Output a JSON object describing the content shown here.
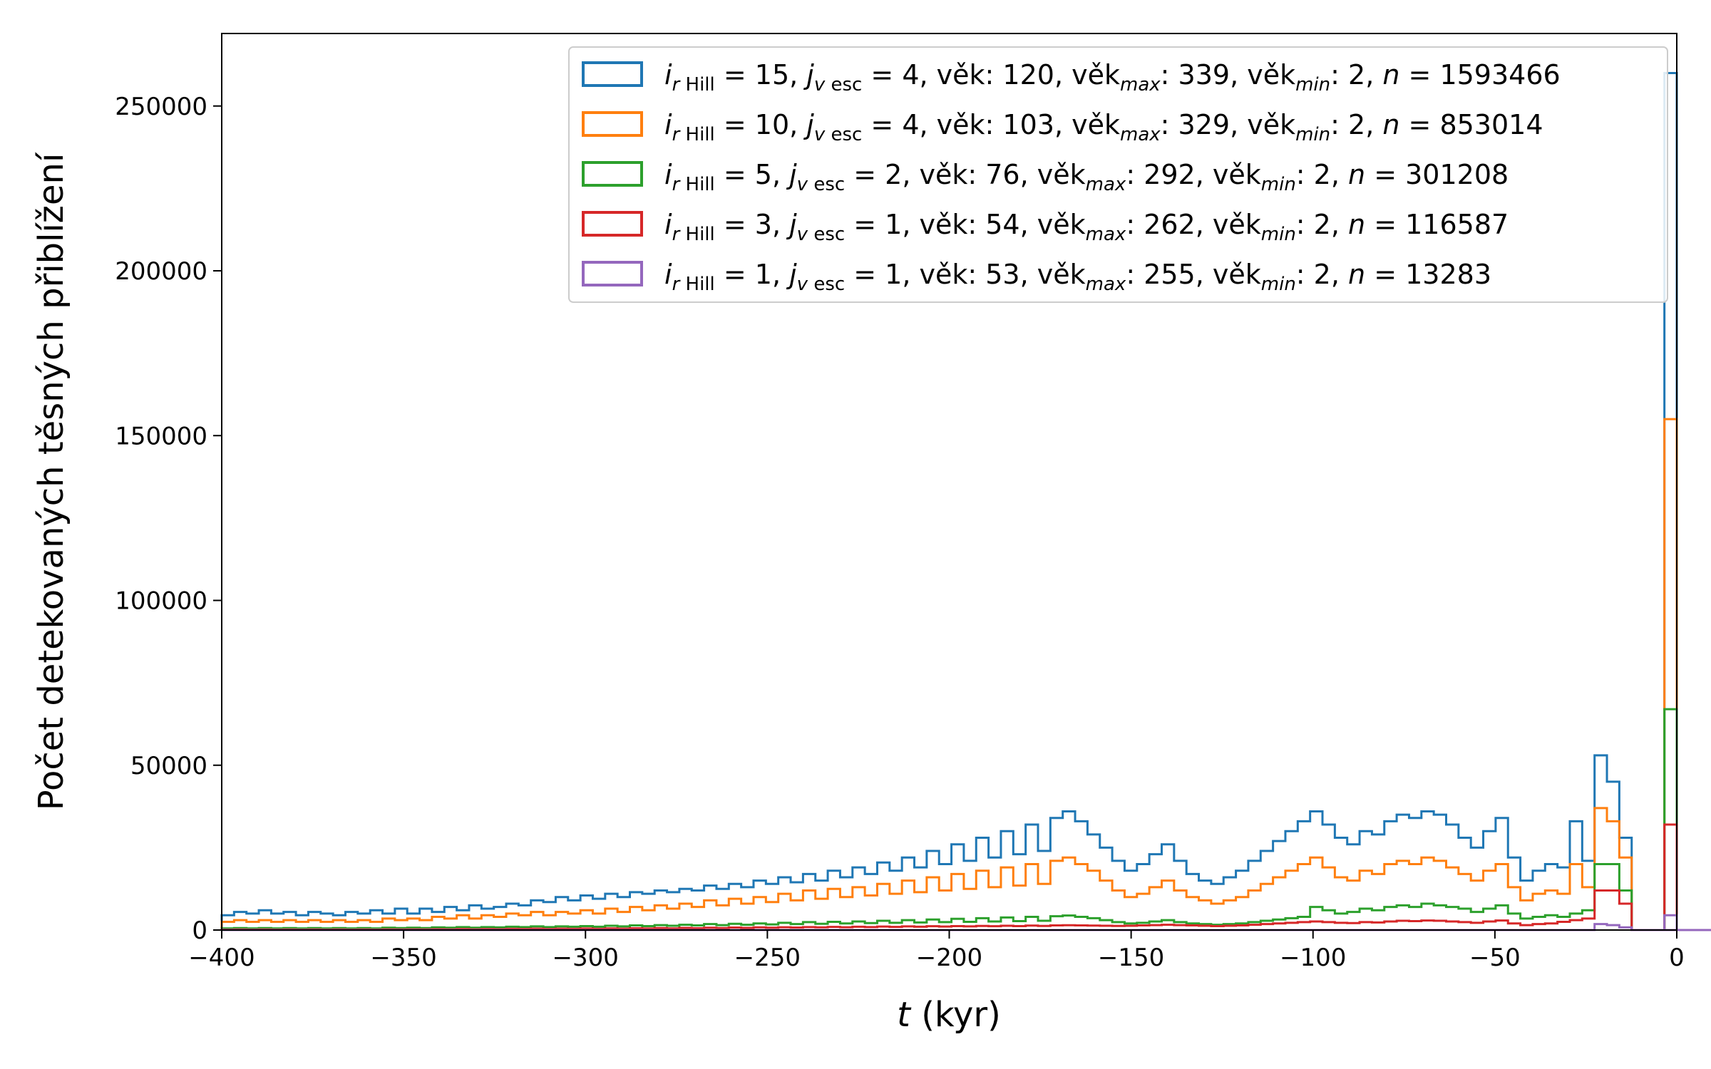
{
  "chart_data": {
    "type": "histogram",
    "xlabel": {
      "var": "t",
      "rest": " (kyr)"
    },
    "ylabel": "Počet detekovaných těsných přiblížení",
    "xlim": [
      -400,
      0
    ],
    "ylim": [
      0,
      272000
    ],
    "x_ticks": [
      -400,
      -350,
      -300,
      -250,
      -200,
      -150,
      -100,
      -50,
      0
    ],
    "x_tick_labels": [
      "−400",
      "−350",
      "−300",
      "−250",
      "−200",
      "−150",
      "−100",
      "−50",
      "0"
    ],
    "y_ticks": [
      0,
      50000,
      100000,
      150000,
      200000,
      250000
    ],
    "y_tick_labels": [
      "0",
      "50000",
      "100000",
      "150000",
      "200000",
      "250000"
    ],
    "grid": false,
    "legend_position": "top-right",
    "bin_start": -400,
    "bin_width": 3.4,
    "x_last_bin": [
      -3.4,
      0
    ],
    "series": [
      {
        "color": "#1f77b4",
        "legend": {
          "rh": "15",
          "jv": "4",
          "age": "120",
          "age_max": "339",
          "age_min": "2",
          "n": "1593466"
        },
        "values": [
          4500,
          5500,
          5000,
          6000,
          5000,
          5500,
          4500,
          5500,
          5000,
          4500,
          5500,
          5000,
          6000,
          5000,
          6500,
          5000,
          6500,
          5500,
          7000,
          6000,
          7500,
          6500,
          7000,
          8000,
          7500,
          9000,
          8500,
          10000,
          9000,
          10500,
          9500,
          11000,
          10000,
          11500,
          11000,
          12000,
          11500,
          12500,
          12000,
          13500,
          12500,
          14000,
          13000,
          15000,
          14000,
          16000,
          14500,
          17000,
          15000,
          18000,
          16000,
          19000,
          17000,
          20500,
          18000,
          22000,
          19000,
          24000,
          20000,
          26000,
          21000,
          28000,
          22000,
          30000,
          23000,
          32000,
          24000,
          34000,
          36000,
          33000,
          29000,
          25000,
          21000,
          18000,
          20000,
          23000,
          26000,
          21000,
          17000,
          15000,
          14000,
          16000,
          18000,
          21000,
          24000,
          27000,
          30000,
          33000,
          36000,
          32000,
          28000,
          26000,
          30000,
          29000,
          33000,
          35000,
          34000,
          36000,
          35000,
          32000,
          28000,
          25000,
          30000,
          34000,
          22000,
          15000,
          18000,
          20000,
          19000,
          33000,
          21000,
          53000,
          45000,
          28000,
          0,
          0,
          0,
          0,
          0,
          0,
          0,
          0,
          0,
          0,
          0,
          0,
          0,
          0,
          0
        ],
        "last_bin": 260000
      },
      {
        "color": "#ff7f0e",
        "legend": {
          "rh": "10",
          "jv": "4",
          "age": "103",
          "age_max": "329",
          "age_min": "2",
          "n": "853014"
        },
        "values": [
          2500,
          3000,
          2500,
          3000,
          2500,
          3000,
          2500,
          3000,
          2500,
          3000,
          2500,
          3000,
          2500,
          3500,
          3000,
          3500,
          3000,
          4000,
          3500,
          4500,
          3500,
          4500,
          4000,
          5000,
          4500,
          5500,
          4500,
          5500,
          5000,
          6000,
          5000,
          6500,
          5500,
          7000,
          6000,
          7500,
          6500,
          8000,
          7000,
          9000,
          7500,
          9500,
          8000,
          10000,
          8500,
          11000,
          9000,
          12000,
          9500,
          12500,
          10000,
          13000,
          10500,
          14000,
          11000,
          15000,
          11500,
          16000,
          12000,
          17000,
          12500,
          18000,
          13000,
          19000,
          13500,
          20000,
          14000,
          21000,
          22000,
          20000,
          18000,
          15000,
          12000,
          10000,
          11000,
          13000,
          15000,
          12000,
          10000,
          9000,
          8000,
          9000,
          10000,
          12000,
          14000,
          16000,
          18000,
          20000,
          22000,
          19000,
          16000,
          15000,
          18000,
          17000,
          20000,
          21000,
          20000,
          22000,
          21000,
          19000,
          17000,
          15000,
          18000,
          20000,
          13000,
          9000,
          11000,
          12000,
          11000,
          20000,
          13000,
          37000,
          33000,
          22000,
          0,
          0,
          0,
          0,
          0,
          0,
          0,
          0,
          0,
          0,
          0,
          0,
          0,
          0,
          0
        ],
        "last_bin": 155000
      },
      {
        "color": "#2ca02c",
        "legend": {
          "rh": " 5",
          "jv": "2",
          "age": " 76",
          "age_max": "292",
          "age_min": "2",
          "n": "301208"
        },
        "values": [
          500,
          600,
          500,
          600,
          500,
          600,
          500,
          600,
          500,
          600,
          500,
          600,
          500,
          700,
          600,
          700,
          600,
          800,
          700,
          900,
          700,
          900,
          800,
          1000,
          900,
          1100,
          900,
          1100,
          1000,
          1200,
          1000,
          1300,
          1100,
          1400,
          1200,
          1500,
          1300,
          1600,
          1400,
          1800,
          1500,
          1900,
          1600,
          2000,
          1700,
          2200,
          1800,
          2400,
          1900,
          2500,
          2000,
          2600,
          2100,
          2800,
          2200,
          3000,
          2300,
          3200,
          2400,
          3400,
          2500,
          3600,
          2600,
          3800,
          2700,
          4000,
          2800,
          4200,
          4400,
          4000,
          3600,
          3000,
          2400,
          2000,
          2200,
          2600,
          3000,
          2400,
          2000,
          1800,
          1600,
          1800,
          2000,
          2400,
          2800,
          3200,
          3600,
          4000,
          7000,
          6000,
          5000,
          5500,
          6500,
          6000,
          7000,
          7500,
          7000,
          8000,
          7500,
          7000,
          6500,
          5500,
          6500,
          7500,
          5000,
          3500,
          4000,
          4500,
          4000,
          5000,
          6000,
          20000,
          20000,
          12000,
          0,
          0,
          0,
          0,
          0,
          0,
          0,
          0,
          0,
          0,
          0,
          0,
          0,
          0,
          0
        ],
        "last_bin": 67000
      },
      {
        "color": "#d62728",
        "legend": {
          "rh": " 3",
          "jv": "1",
          "age": " 54",
          "age_max": "262",
          "age_min": "2",
          "n": "116587"
        },
        "values": [
          100,
          150,
          100,
          150,
          100,
          150,
          100,
          150,
          100,
          150,
          100,
          150,
          100,
          200,
          150,
          200,
          150,
          250,
          200,
          300,
          200,
          300,
          250,
          350,
          300,
          400,
          300,
          400,
          350,
          450,
          350,
          500,
          400,
          550,
          450,
          600,
          500,
          650,
          550,
          700,
          600,
          750,
          650,
          800,
          700,
          850,
          750,
          900,
          800,
          950,
          850,
          1000,
          900,
          1050,
          950,
          1100,
          1000,
          1150,
          1050,
          1200,
          1100,
          1250,
          1150,
          1300,
          1200,
          1350,
          1250,
          1400,
          1450,
          1400,
          1350,
          1300,
          1250,
          1300,
          1400,
          1500,
          1600,
          1500,
          1400,
          1300,
          1200,
          1300,
          1400,
          1600,
          1800,
          2000,
          2200,
          2400,
          2600,
          2400,
          2200,
          2100,
          2400,
          2300,
          2600,
          2800,
          2700,
          2900,
          2800,
          2600,
          2400,
          2200,
          2600,
          2900,
          2000,
          1500,
          1800,
          2000,
          2500,
          3000,
          3500,
          12000,
          12000,
          8000,
          0,
          0,
          0,
          0,
          0,
          0,
          0,
          0,
          0,
          0,
          0,
          0,
          0,
          0,
          0
        ],
        "last_bin": 32000
      },
      {
        "color": "#9467bd",
        "legend": {
          "rh": " 1",
          "jv": "1",
          "age": " 53",
          "age_max": "255",
          "age_min": "2",
          "n": "13283"
        },
        "values": [
          0,
          0,
          0,
          0,
          0,
          0,
          0,
          0,
          0,
          0,
          0,
          0,
          0,
          0,
          0,
          0,
          0,
          0,
          0,
          0,
          0,
          0,
          0,
          0,
          0,
          0,
          0,
          0,
          0,
          0,
          0,
          0,
          0,
          0,
          0,
          0,
          0,
          0,
          0,
          0,
          0,
          0,
          0,
          0,
          0,
          0,
          0,
          0,
          0,
          0,
          0,
          0,
          0,
          0,
          0,
          0,
          0,
          0,
          0,
          0,
          0,
          0,
          0,
          0,
          0,
          0,
          0,
          0,
          0,
          0,
          0,
          0,
          0,
          0,
          0,
          0,
          0,
          0,
          0,
          0,
          0,
          0,
          0,
          0,
          0,
          0,
          0,
          0,
          0,
          0,
          0,
          0,
          0,
          0,
          0,
          0,
          0,
          0,
          0,
          0,
          0,
          0,
          0,
          0,
          0,
          0,
          0,
          0,
          0,
          0,
          0,
          1800,
          1500,
          800,
          0,
          0,
          0,
          0,
          0,
          0,
          0,
          0,
          0,
          0,
          0,
          0,
          0,
          0,
          0
        ],
        "last_bin": 4500
      }
    ]
  }
}
